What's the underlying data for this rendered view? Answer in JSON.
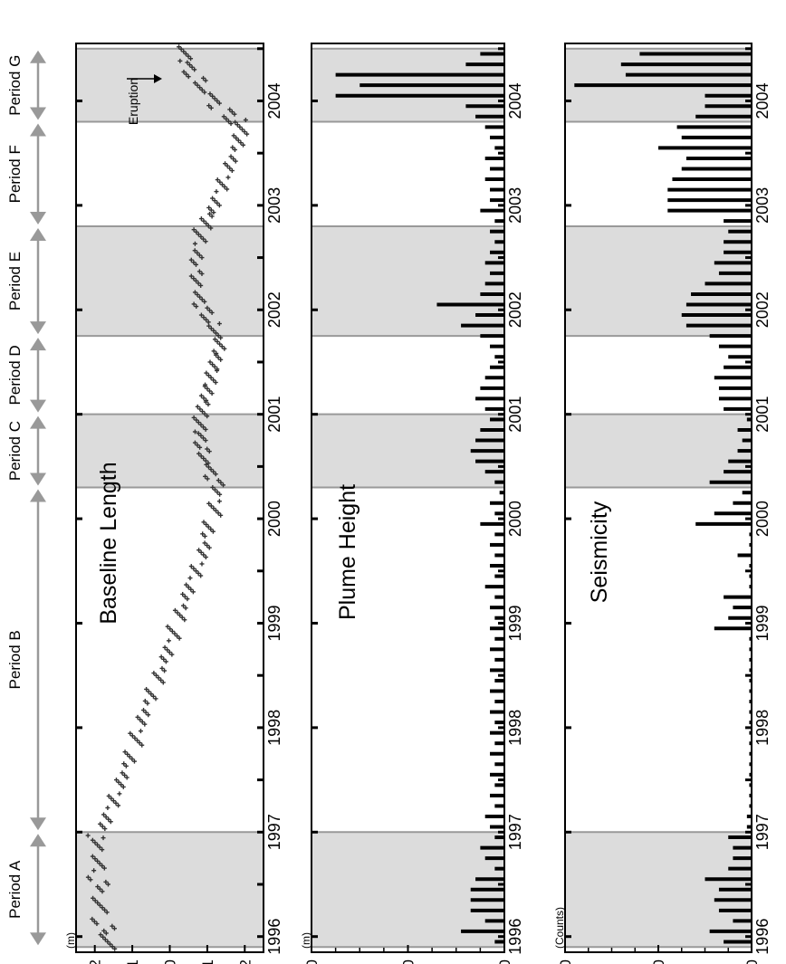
{
  "colors": {
    "shade": "#dcdcdc",
    "shade_edge": "#999999",
    "axis": "#000000",
    "arrow": "#999999",
    "mark": "#000000",
    "scatter": "#333333"
  },
  "periods": [
    {
      "label": "Period A",
      "start": 1995.9,
      "end": 1997.0
    },
    {
      "label": "Period B",
      "start": 1997.0,
      "end": 2000.3
    },
    {
      "label": "Period C",
      "start": 2000.3,
      "end": 2001.0
    },
    {
      "label": "Period D",
      "start": 2001.0,
      "end": 2001.75
    },
    {
      "label": "Period E",
      "start": 2001.75,
      "end": 2002.8
    },
    {
      "label": "Period F",
      "start": 2002.8,
      "end": 2003.8
    },
    {
      "label": "Period G",
      "start": 2003.8,
      "end": 2004.5
    }
  ],
  "chart_data": [
    {
      "type": "scatter",
      "title": "Baseline Length",
      "unit": "(m)",
      "ylim": [
        -0.025,
        0.025
      ],
      "yticks": [
        "0.02",
        "0.01",
        "0",
        "-0.01",
        "-0.02"
      ],
      "ytick_values": [
        0.02,
        0.01,
        0,
        -0.01,
        -0.02
      ],
      "xticks": [
        "1996",
        "1997",
        "1998",
        "1999",
        "2000",
        "2001",
        "2002",
        "2003",
        "2004"
      ],
      "annotation": "Eruption",
      "shaded_intervals": [
        [
          1995.9,
          1997.0
        ],
        [
          2000.3,
          2001.0
        ],
        [
          2001.75,
          2002.8
        ],
        [
          2003.8,
          2004.5
        ]
      ],
      "x": [
        1995.95,
        1996.1,
        1996.3,
        1996.5,
        1996.7,
        1996.9,
        1997.1,
        1997.3,
        1997.5,
        1997.7,
        1997.9,
        1998.1,
        1998.3,
        1998.5,
        1998.7,
        1998.9,
        1999.1,
        1999.3,
        1999.5,
        1999.7,
        1999.9,
        2000.1,
        2000.3,
        2000.45,
        2000.6,
        2000.75,
        2000.9,
        2001.05,
        2001.2,
        2001.35,
        2001.5,
        2001.65,
        2001.8,
        2001.95,
        2002.1,
        2002.3,
        2002.5,
        2002.7,
        2002.85,
        2003.0,
        2003.2,
        2003.4,
        2003.6,
        2003.75,
        2003.85,
        2004.0,
        2004.15,
        2004.3,
        2004.45
      ],
      "y": [
        0.015,
        0.016,
        0.018,
        0.018,
        0.019,
        0.019,
        0.017,
        0.015,
        0.013,
        0.011,
        0.009,
        0.007,
        0.005,
        0.003,
        0.001,
        -0.001,
        -0.003,
        -0.005,
        -0.007,
        -0.009,
        -0.01,
        -0.012,
        -0.013,
        -0.011,
        -0.009,
        -0.008,
        -0.008,
        -0.009,
        -0.01,
        -0.011,
        -0.012,
        -0.013,
        -0.012,
        -0.01,
        -0.008,
        -0.007,
        -0.007,
        -0.008,
        -0.01,
        -0.012,
        -0.014,
        -0.016,
        -0.018,
        -0.019,
        -0.016,
        -0.012,
        -0.008,
        -0.005,
        -0.004
      ]
    },
    {
      "type": "bar",
      "title": "Plume Height",
      "unit": "(m)",
      "ylim": [
        0,
        4000
      ],
      "yticks": [
        "4000",
        "2000",
        "0"
      ],
      "ytick_values": [
        4000,
        2000,
        0
      ],
      "xticks": [
        "1996",
        "1997",
        "1998",
        "1999",
        "2000",
        "2001",
        "2002",
        "2003",
        "2004"
      ],
      "shaded_intervals": [
        [
          1995.9,
          1997.0
        ],
        [
          2000.3,
          2001.0
        ],
        [
          2001.75,
          2002.8
        ],
        [
          2003.8,
          2004.5
        ]
      ],
      "x": [
        1995.95,
        1996.05,
        1996.15,
        1996.25,
        1996.35,
        1996.45,
        1996.55,
        1996.65,
        1996.75,
        1996.85,
        1996.95,
        1997.05,
        1997.15,
        1997.25,
        1997.35,
        1997.45,
        1997.55,
        1997.65,
        1997.75,
        1997.85,
        1997.95,
        1998.05,
        1998.15,
        1998.25,
        1998.35,
        1998.45,
        1998.55,
        1998.65,
        1998.75,
        1998.85,
        1998.95,
        1999.05,
        1999.15,
        1999.25,
        1999.35,
        1999.45,
        1999.55,
        1999.65,
        1999.75,
        1999.85,
        1999.95,
        2000.05,
        2000.15,
        2000.25,
        2000.35,
        2000.45,
        2000.55,
        2000.65,
        2000.75,
        2000.85,
        2000.95,
        2001.05,
        2001.15,
        2001.25,
        2001.35,
        2001.45,
        2001.55,
        2001.65,
        2001.75,
        2001.85,
        2001.95,
        2002.05,
        2002.15,
        2002.25,
        2002.35,
        2002.45,
        2002.55,
        2002.65,
        2002.75,
        2002.85,
        2002.95,
        2003.05,
        2003.15,
        2003.25,
        2003.35,
        2003.45,
        2003.55,
        2003.65,
        2003.75,
        2003.85,
        2003.95,
        2004.05,
        2004.15,
        2004.25,
        2004.35,
        2004.45
      ],
      "values": [
        200,
        900,
        400,
        700,
        700,
        700,
        600,
        200,
        400,
        500,
        200,
        300,
        400,
        200,
        300,
        200,
        300,
        200,
        300,
        200,
        300,
        200,
        300,
        200,
        300,
        200,
        300,
        200,
        300,
        200,
        300,
        200,
        300,
        200,
        400,
        200,
        300,
        200,
        300,
        200,
        500,
        200,
        300,
        100,
        200,
        400,
        600,
        700,
        600,
        500,
        300,
        400,
        600,
        500,
        400,
        300,
        200,
        300,
        500,
        900,
        600,
        1400,
        500,
        400,
        300,
        400,
        300,
        200,
        300,
        200,
        500,
        300,
        300,
        400,
        300,
        400,
        200,
        300,
        400,
        600,
        800,
        3500,
        3000,
        3500,
        800,
        500
      ]
    },
    {
      "type": "bar",
      "title": "Seismicity",
      "unit": "(Counts)",
      "ylim": [
        0,
        4000
      ],
      "yticks": [
        "4000",
        "2000",
        "0"
      ],
      "ytick_values": [
        4000,
        2000,
        0
      ],
      "xticks": [
        "1996",
        "1997",
        "1998",
        "1999",
        "2000",
        "2001",
        "2002",
        "2003",
        "2004"
      ],
      "shaded_intervals": [
        [
          1995.9,
          1997.0
        ],
        [
          2000.3,
          2001.0
        ],
        [
          2001.75,
          2002.8
        ],
        [
          2003.8,
          2004.5
        ]
      ],
      "x": [
        1995.95,
        1996.05,
        1996.15,
        1996.25,
        1996.35,
        1996.45,
        1996.55,
        1996.65,
        1996.75,
        1996.85,
        1996.95,
        1997.05,
        1997.15,
        1997.25,
        1997.35,
        1997.45,
        1997.55,
        1997.65,
        1997.75,
        1997.85,
        1997.95,
        1998.05,
        1998.15,
        1998.25,
        1998.35,
        1998.45,
        1998.55,
        1998.65,
        1998.75,
        1998.85,
        1998.95,
        1999.05,
        1999.15,
        1999.25,
        1999.35,
        1999.45,
        1999.55,
        1999.65,
        1999.75,
        1999.85,
        1999.95,
        2000.05,
        2000.15,
        2000.25,
        2000.35,
        2000.45,
        2000.55,
        2000.65,
        2000.75,
        2000.85,
        2000.95,
        2001.05,
        2001.15,
        2001.25,
        2001.35,
        2001.45,
        2001.55,
        2001.65,
        2001.75,
        2001.85,
        2001.95,
        2002.05,
        2002.15,
        2002.25,
        2002.35,
        2002.45,
        2002.55,
        2002.65,
        2002.75,
        2002.85,
        2002.95,
        2003.05,
        2003.15,
        2003.25,
        2003.35,
        2003.45,
        2003.55,
        2003.65,
        2003.75,
        2003.85,
        2003.95,
        2004.05,
        2004.15,
        2004.25,
        2004.35,
        2004.45
      ],
      "values": [
        600,
        900,
        400,
        700,
        800,
        700,
        1000,
        500,
        400,
        400,
        500,
        100,
        100,
        50,
        50,
        50,
        50,
        50,
        50,
        50,
        50,
        50,
        50,
        50,
        50,
        50,
        50,
        50,
        50,
        50,
        800,
        500,
        400,
        600,
        50,
        50,
        50,
        300,
        50,
        50,
        1200,
        800,
        400,
        200,
        900,
        600,
        500,
        300,
        200,
        300,
        100,
        600,
        700,
        700,
        800,
        600,
        500,
        700,
        900,
        1400,
        1500,
        1400,
        1300,
        1000,
        700,
        800,
        600,
        600,
        500,
        600,
        1800,
        1800,
        1800,
        1700,
        1500,
        1400,
        2000,
        1500,
        1600,
        1200,
        1000,
        1000,
        3800,
        2700,
        2800,
        2400
      ]
    }
  ]
}
